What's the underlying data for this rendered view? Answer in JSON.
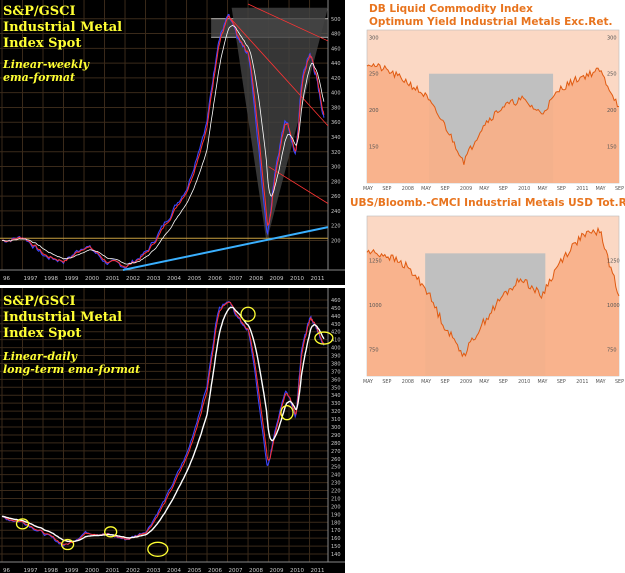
{
  "panels": {
    "top_left": {
      "title_lines": [
        "S&P/GSCI",
        "Industrial Metal",
        "Index Spot"
      ],
      "subtitle_lines": [
        "Linear-weekly",
        "ema-format"
      ]
    },
    "bottom_left": {
      "title_lines": [
        "S&P/GSCI",
        "Industrial Metal",
        "Index Spot"
      ],
      "subtitle_lines": [
        "Linear-daily",
        "long-term ema-format"
      ]
    },
    "top_right": {
      "title_lines": [
        "DB Liquid Commodity Index",
        "Optimum Yield Industrial Metals Exc.Ret."
      ]
    },
    "bottom_right": {
      "title_lines": [
        "UBS/Bloomb.-CMCI Industrial Metals USD Tot.Ret."
      ]
    }
  },
  "colors": {
    "dark_bg": "#000000",
    "grid": "#3a2a1a",
    "yellow_text": "#ffff33",
    "orange_fill": "#f8b088",
    "orange_line": "#e05a10",
    "gray_shade": "#c0c0c0",
    "trendline": "#3ab0ff"
  },
  "chart_data": [
    {
      "type": "line",
      "panel": "top_left",
      "x": [
        1996,
        1997,
        1998,
        1999,
        2000,
        2001,
        2002,
        2003,
        2004,
        2005,
        2006,
        2006.5,
        2007,
        2007.5,
        2008,
        2008.9,
        2009.3,
        2009.8,
        2010.3,
        2010.6,
        2011.0,
        2011.3,
        2011.7
      ],
      "values": [
        200,
        205,
        178,
        172,
        195,
        170,
        165,
        185,
        230,
        275,
        370,
        470,
        505,
        470,
        450,
        195,
        300,
        370,
        310,
        420,
        455,
        420,
        360
      ],
      "tick_labels_x": [
        "96",
        "1997",
        "1998",
        "1999",
        "2000",
        "2001",
        "2002",
        "2003",
        "2004",
        "2005",
        "2006",
        "2007",
        "2008",
        "2009",
        "2010",
        "2011"
      ],
      "tick_labels_y": [
        "200",
        "220",
        "240",
        "260",
        "280",
        "300",
        "320",
        "340",
        "360",
        "380",
        "400",
        "420",
        "440",
        "460",
        "480",
        "500"
      ],
      "ylim": [
        160,
        520
      ]
    },
    {
      "type": "line",
      "panel": "bottom_left",
      "x": [
        1996,
        1997,
        1998,
        1999,
        2000,
        2001,
        2002,
        2003,
        2004,
        2005,
        2006,
        2006.5,
        2007,
        2007.5,
        2008,
        2008.9,
        2009.3,
        2009.8,
        2010.3,
        2010.6,
        2011.0,
        2011.3,
        2011.7
      ],
      "values": [
        185,
        180,
        165,
        150,
        168,
        165,
        158,
        170,
        215,
        270,
        360,
        450,
        460,
        435,
        420,
        240,
        300,
        350,
        310,
        400,
        440,
        425,
        400
      ],
      "tick_labels_x": [
        "96",
        "1997",
        "1998",
        "1999",
        "2000",
        "2001",
        "2002",
        "2003",
        "2004",
        "2005",
        "2006",
        "2007",
        "2008",
        "2009",
        "2010",
        "2011"
      ],
      "tick_labels_y": [
        "140",
        "150",
        "160",
        "170",
        "180",
        "190",
        "200",
        "210",
        "220",
        "230",
        "240",
        "250",
        "260",
        "270",
        "280",
        "290",
        "300",
        "310",
        "320",
        "330",
        "340",
        "350",
        "360",
        "370",
        "380",
        "390",
        "400",
        "410",
        "420",
        "430",
        "440",
        "450",
        "460"
      ],
      "ylim": [
        130,
        470
      ]
    },
    {
      "type": "area",
      "panel": "top_right",
      "x": [
        "MAY",
        "SEP",
        "2008",
        "MAY",
        "SEP",
        "2009",
        "MAY",
        "SEP",
        "2010",
        "MAY",
        "SEP",
        "2011",
        "MAY",
        "SEP"
      ],
      "values": [
        265,
        255,
        240,
        220,
        180,
        130,
        180,
        205,
        215,
        195,
        230,
        245,
        255,
        205
      ],
      "tick_labels_y": [
        "300",
        "250",
        "200",
        "150"
      ],
      "ylim": [
        100,
        310
      ]
    },
    {
      "type": "area",
      "panel": "bottom_right",
      "x": [
        "MAY",
        "SEP",
        "2008",
        "MAY",
        "SEP",
        "2009",
        "MAY",
        "SEP",
        "2010",
        "MAY",
        "SEP",
        "2011",
        "MAY",
        "SEP"
      ],
      "values": [
        1300,
        1280,
        1220,
        1100,
        880,
        720,
        900,
        1050,
        1150,
        1050,
        1250,
        1380,
        1420,
        1050
      ],
      "tick_labels_y": [
        "1250",
        "1000",
        "750"
      ],
      "ylim": [
        600,
        1500
      ]
    }
  ]
}
